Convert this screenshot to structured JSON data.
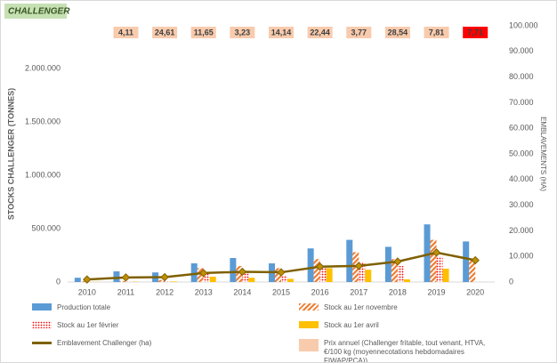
{
  "chart_data": {
    "type": "bar",
    "title": "CHALLENGER",
    "y_label": "STOCKS CHALLENGER (TONNES)",
    "y2_label": "EMBLAVEMENTS (HA)",
    "categories": [
      "2010",
      "2011",
      "2012",
      "2013",
      "2014",
      "2015",
      "2016",
      "2017",
      "2018",
      "2019",
      "2020"
    ],
    "ylim": [
      0,
      2400000
    ],
    "yticks": [
      0,
      {
        "value": 500000,
        "label": "500.000"
      },
      {
        "value": 1000000,
        "label": "1.000.000"
      },
      {
        "value": 1500000,
        "label": "1.500.000"
      },
      {
        "value": 2000000,
        "label": "2.000.000"
      }
    ],
    "y2lim": [
      0,
      100000
    ],
    "y2ticks": [
      0,
      {
        "value": 10000,
        "label": "10.000"
      },
      {
        "value": 20000,
        "label": "20.000"
      },
      {
        "value": 30000,
        "label": "30.000"
      },
      {
        "value": 40000,
        "label": "40.000"
      },
      {
        "value": 50000,
        "label": "50.000"
      },
      {
        "value": 60000,
        "label": "60.000"
      },
      {
        "value": 70000,
        "label": "70.000"
      },
      {
        "value": 80000,
        "label": "80.000"
      },
      {
        "value": 90000,
        "label": "90.000"
      },
      {
        "value": 100000,
        "label": "100.000"
      }
    ],
    "series": [
      {
        "name": "Production totale",
        "type": "bar",
        "fill": "solid",
        "color": "#5b9bd5",
        "values": [
          40000,
          100000,
          90000,
          175000,
          225000,
          175000,
          315000,
          395000,
          330000,
          540000,
          380000
        ]
      },
      {
        "name": "Stock au 1er novembre",
        "type": "bar",
        "fill": "hatch",
        "color": "#ed7d31",
        "values": [
          10000,
          10000,
          20000,
          130000,
          150000,
          130000,
          215000,
          280000,
          215000,
          395000,
          215000
        ]
      },
      {
        "name": "Stock au 1er février",
        "type": "bar",
        "fill": "dots",
        "color": "#ff0000",
        "values": [
          5000,
          5000,
          10000,
          90000,
          110000,
          65000,
          155000,
          190000,
          150000,
          240000,
          null
        ]
      },
      {
        "name": "Stock au 1er avril",
        "type": "bar",
        "fill": "solid",
        "color": "#ffc000",
        "values": [
          2000,
          3000,
          5000,
          50000,
          40000,
          30000,
          130000,
          115000,
          25000,
          125000,
          null
        ]
      },
      {
        "name": "Emblavement Challenger (ha)",
        "type": "line",
        "axis": "y2",
        "color": "#7f6000",
        "marker_color": "#bf8f00",
        "values": [
          1000,
          1800,
          1900,
          3500,
          4000,
          3800,
          6000,
          6300,
          8000,
          11500,
          8500
        ]
      }
    ],
    "price": {
      "name": "Prix annuel (Challenger fritable, tout venant, HTVA, €/100 kg (moyennecotations hebdomadaires FIWAP/PCA))",
      "colors": [
        "#f8cbad",
        "#f8cbad",
        "#f8cbad",
        "#f8cbad",
        "#f8cbad",
        "#f8cbad",
        "#f8cbad",
        "#f8cbad",
        "#f8cbad",
        "#f8cbad",
        "#ff0000"
      ],
      "values": [
        null,
        4.11,
        24.61,
        11.65,
        3.23,
        14.14,
        22.44,
        3.77,
        28.54,
        7.81,
        7.71
      ],
      "value_labels": [
        null,
        "4,11",
        "24,61",
        "11,65",
        "3,23",
        "14,14",
        "22,44",
        "3,77",
        "28,54",
        "7,81",
        "7,71"
      ]
    }
  }
}
